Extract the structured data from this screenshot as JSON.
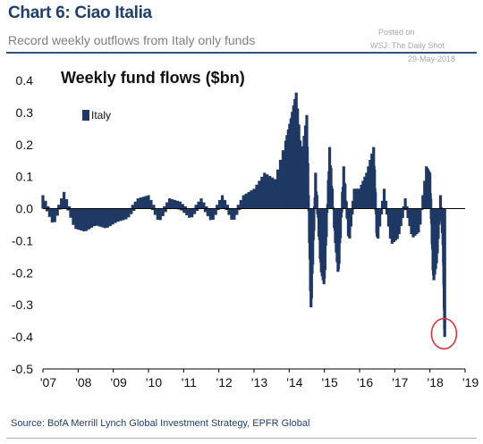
{
  "header": {
    "title": "Chart 6: Ciao Italia",
    "subtitle": "Record weekly outflows from Italy only funds"
  },
  "watermark": {
    "line1": "Posted on",
    "line2": "WSJ: The Daily Shot",
    "line3": "29-May-2018"
  },
  "footer": {
    "source": "Source:  BofA Merrill Lynch Global Investment Strategy, EPFR Global"
  },
  "colors": {
    "bar": "#1f3864",
    "highlight_circle": "#d9343a",
    "title": "#1f3f6d"
  },
  "chart_data": {
    "type": "bar",
    "title": "Weekly fund flows ($bn)",
    "xlabel": "",
    "ylabel": "",
    "ylim": [
      -0.5,
      0.4
    ],
    "yticks": [
      "0.4",
      "0.3",
      "0.2",
      "0.1",
      "0.0",
      "-0.1",
      "-0.2",
      "-0.3",
      "-0.4",
      "-0.5"
    ],
    "xlim": [
      2007,
      2019
    ],
    "xticks": [
      "'07",
      "'08",
      "'09",
      "'10",
      "'11",
      "'12",
      "'13",
      "'14",
      "'15",
      "'16",
      "'17",
      "'18",
      "'19"
    ],
    "grid": false,
    "legend": "top-left",
    "series": [
      {
        "name": "Italy",
        "frequency": "weekly",
        "points": [
          [
            2007.0,
            0.03
          ],
          [
            2007.3,
            -0.04
          ],
          [
            2007.6,
            0.04
          ],
          [
            2007.9,
            -0.05
          ],
          [
            2008.2,
            -0.06
          ],
          [
            2008.5,
            -0.04
          ],
          [
            2008.8,
            -0.05
          ],
          [
            2009.1,
            -0.03
          ],
          [
            2009.4,
            -0.02
          ],
          [
            2009.7,
            0.02
          ],
          [
            2010.0,
            0.03
          ],
          [
            2010.3,
            -0.03
          ],
          [
            2010.6,
            0.02
          ],
          [
            2010.9,
            0.01
          ],
          [
            2011.2,
            -0.02
          ],
          [
            2011.5,
            0.02
          ],
          [
            2011.8,
            -0.03
          ],
          [
            2012.1,
            0.03
          ],
          [
            2012.4,
            -0.03
          ],
          [
            2012.7,
            0.03
          ],
          [
            2013.0,
            0.05
          ],
          [
            2013.3,
            0.1
          ],
          [
            2013.6,
            0.08
          ],
          [
            2013.9,
            0.2
          ],
          [
            2014.05,
            0.27
          ],
          [
            2014.2,
            0.35
          ],
          [
            2014.35,
            0.15
          ],
          [
            2014.5,
            0.28
          ],
          [
            2014.62,
            -0.32
          ],
          [
            2014.75,
            0.1
          ],
          [
            2014.9,
            -0.18
          ],
          [
            2015.0,
            -0.23
          ],
          [
            2015.15,
            0.18
          ],
          [
            2015.3,
            -0.08
          ],
          [
            2015.4,
            -0.2
          ],
          [
            2015.55,
            0.12
          ],
          [
            2015.7,
            -0.1
          ],
          [
            2015.85,
            0.05
          ],
          [
            2016.0,
            0.05
          ],
          [
            2016.2,
            0.1
          ],
          [
            2016.4,
            0.18
          ],
          [
            2016.5,
            -0.1
          ],
          [
            2016.7,
            0.05
          ],
          [
            2016.9,
            -0.1
          ],
          [
            2017.1,
            -0.08
          ],
          [
            2017.3,
            0.02
          ],
          [
            2017.5,
            -0.08
          ],
          [
            2017.7,
            -0.06
          ],
          [
            2017.9,
            0.12
          ],
          [
            2018.0,
            0.1
          ],
          [
            2018.1,
            -0.22
          ],
          [
            2018.2,
            -0.15
          ],
          [
            2018.3,
            0.03
          ],
          [
            2018.38,
            -0.12
          ],
          [
            2018.42,
            -0.4
          ]
        ]
      }
    ],
    "annotations": [
      {
        "type": "circle",
        "x": 2018.4,
        "y": -0.39,
        "color": "#d9343a"
      }
    ]
  }
}
